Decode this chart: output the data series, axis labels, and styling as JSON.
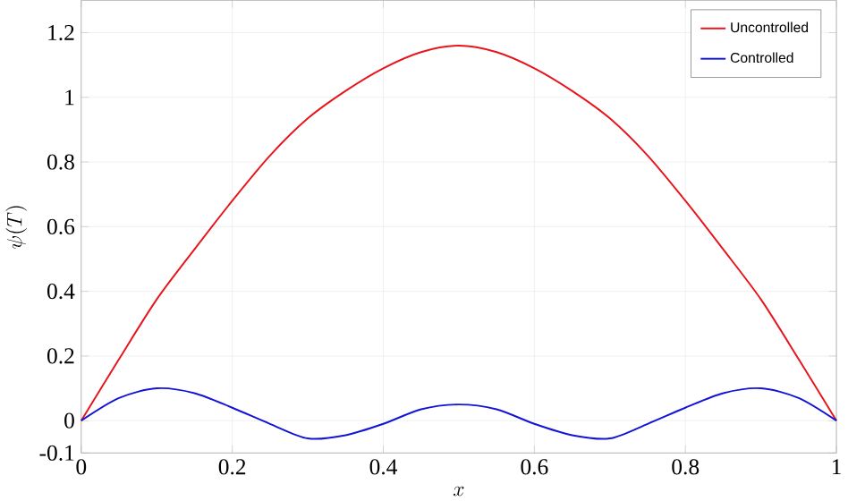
{
  "chart_data": {
    "type": "line",
    "xlabel": "x",
    "ylabel": "\\psi(T)",
    "xlim": [
      0,
      1
    ],
    "ylim": [
      -0.1,
      1.3
    ],
    "xticks": [
      0,
      0.2,
      0.4,
      0.6,
      0.8,
      1
    ],
    "yticks": [
      -0.1,
      0,
      0.2,
      0.4,
      0.6,
      0.8,
      1,
      1.2
    ],
    "grid": true,
    "legend": "top right",
    "line_style": "solid",
    "marker": "none",
    "x": [
      0,
      0.05,
      0.1,
      0.15,
      0.2,
      0.25,
      0.3,
      0.35,
      0.4,
      0.45,
      0.5,
      0.55,
      0.6,
      0.65,
      0.7,
      0.75,
      0.8,
      0.85,
      0.9,
      0.95,
      1
    ],
    "series": [
      {
        "name": "Uncontrolled",
        "color": "#e8141c",
        "values": [
          0,
          0.19,
          0.375,
          0.53,
          0.68,
          0.82,
          0.935,
          1.02,
          1.09,
          1.14,
          1.16,
          1.14,
          1.09,
          1.02,
          0.935,
          0.82,
          0.68,
          0.53,
          0.375,
          0.19,
          0
        ]
      },
      {
        "name": "Controlled",
        "color": "#1414d8",
        "values": [
          0,
          0.07,
          0.1,
          0.085,
          0.04,
          -0.01,
          -0.055,
          -0.045,
          -0.01,
          0.035,
          0.05,
          0.035,
          -0.01,
          -0.045,
          -0.055,
          -0.01,
          0.04,
          0.085,
          0.1,
          0.07,
          0
        ]
      }
    ]
  }
}
